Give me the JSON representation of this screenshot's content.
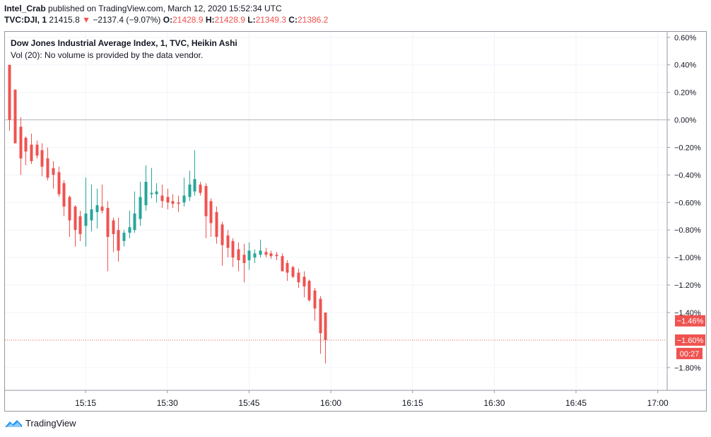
{
  "header": {
    "line1_user": "Intel_Crab",
    "line1_rest": " published on TradingView.com, March 12, 2020 15:52:34 UTC",
    "symbol": "TVC:DJI, 1",
    "price": "21415.8",
    "arrow": "▼",
    "change": "−2137.4 (−9.07%)",
    "o_label": "O:",
    "o_val": "21428.9",
    "h_label": "H:",
    "h_val": "21428.9",
    "l_label": "L:",
    "l_val": "21349.3",
    "c_label": "C:",
    "c_val": "21386.2"
  },
  "legend": {
    "title": "Dow Jones Industrial Average Index, 1, TVC, Heikin Ashi",
    "volume": "Vol (20): No volume is provided by the data vendor."
  },
  "footer": {
    "brand": "TradingView"
  },
  "colors": {
    "up": "#26a69a",
    "down": "#ef5350",
    "grid": "#f0f3fa",
    "axis": "#9598a1"
  },
  "chart_data": {
    "type": "candlestick",
    "style": "Heikin Ashi",
    "y_unit": "%",
    "ylim": [
      -1.96,
      0.64
    ],
    "y_ticks": [
      {
        "v": 0.6,
        "label": "0.60%"
      },
      {
        "v": 0.4,
        "label": "0.40%"
      },
      {
        "v": 0.2,
        "label": "0.20%"
      },
      {
        "v": 0.0,
        "label": "0.00%"
      },
      {
        "v": -0.2,
        "label": "−0.20%"
      },
      {
        "v": -0.4,
        "label": "−0.40%"
      },
      {
        "v": -0.6,
        "label": "−0.60%"
      },
      {
        "v": -0.8,
        "label": "−0.80%"
      },
      {
        "v": -1.0,
        "label": "−1.00%"
      },
      {
        "v": -1.2,
        "label": "−1.20%"
      },
      {
        "v": -1.4,
        "label": "−1.40%"
      },
      {
        "v": -1.8,
        "label": "−1.80%"
      }
    ],
    "x_ticks": [
      {
        "t": 15,
        "label": "15:15"
      },
      {
        "t": 30,
        "label": "15:30"
      },
      {
        "t": 45,
        "label": "15:45"
      },
      {
        "t": 60,
        "label": "16:00"
      },
      {
        "t": 75,
        "label": "16:15"
      },
      {
        "t": 90,
        "label": "16:30"
      },
      {
        "t": 105,
        "label": "16:45"
      },
      {
        "t": 120,
        "label": "17:00"
      }
    ],
    "x_unit": "minutes after 15:00",
    "xlim": [
      0.2,
      121.6
    ],
    "badges": [
      {
        "value": -1.46,
        "label": "−1.46%"
      },
      {
        "value": -1.6,
        "label": "−1.60%"
      }
    ],
    "countdown": "00:27",
    "current_line": -1.6,
    "candles": [
      {
        "t": 1,
        "o": 0.4,
        "c": 0.0,
        "h": 0.4,
        "l": -0.08
      },
      {
        "t": 2,
        "o": 0.22,
        "c": -0.17,
        "h": 0.22,
        "l": -0.17
      },
      {
        "t": 3,
        "o": -0.05,
        "c": -0.28,
        "h": 0.02,
        "l": -0.4
      },
      {
        "t": 4,
        "o": -0.13,
        "c": -0.23,
        "h": -0.12,
        "l": -0.33
      },
      {
        "t": 5,
        "o": -0.18,
        "c": -0.3,
        "h": -0.1,
        "l": -0.32
      },
      {
        "t": 6,
        "o": -0.18,
        "c": -0.26,
        "h": -0.15,
        "l": -0.28
      },
      {
        "t": 7,
        "o": -0.22,
        "c": -0.34,
        "h": -0.17,
        "l": -0.41
      },
      {
        "t": 8,
        "o": -0.28,
        "c": -0.42,
        "h": -0.2,
        "l": -0.44
      },
      {
        "t": 9,
        "o": -0.35,
        "c": -0.4,
        "h": -0.3,
        "l": -0.5
      },
      {
        "t": 10,
        "o": -0.38,
        "c": -0.54,
        "h": -0.34,
        "l": -0.56
      },
      {
        "t": 11,
        "o": -0.46,
        "c": -0.63,
        "h": -0.44,
        "l": -0.7
      },
      {
        "t": 12,
        "o": -0.56,
        "c": -0.73,
        "h": -0.55,
        "l": -0.85
      },
      {
        "t": 13,
        "o": -0.63,
        "c": -0.8,
        "h": -0.62,
        "l": -0.92
      },
      {
        "t": 14,
        "o": -0.7,
        "c": -0.83,
        "h": -0.66,
        "l": -0.88
      },
      {
        "t": 15,
        "o": -0.77,
        "c": -0.68,
        "h": -0.42,
        "l": -0.92
      },
      {
        "t": 16,
        "o": -0.73,
        "c": -0.65,
        "h": -0.47,
        "l": -0.81
      },
      {
        "t": 17,
        "o": -0.67,
        "c": -0.62,
        "h": -0.5,
        "l": -0.79
      },
      {
        "t": 18,
        "o": -0.63,
        "c": -0.66,
        "h": -0.47,
        "l": -0.68
      },
      {
        "t": 19,
        "o": -0.64,
        "c": -0.85,
        "h": -0.59,
        "l": -1.1
      },
      {
        "t": 20,
        "o": -0.73,
        "c": -0.83,
        "h": -0.71,
        "l": -0.96
      },
      {
        "t": 21,
        "o": -0.8,
        "c": -0.95,
        "h": -0.71,
        "l": -1.03
      },
      {
        "t": 22,
        "o": -0.88,
        "c": -0.82,
        "h": -0.8,
        "l": -0.92
      },
      {
        "t": 23,
        "o": -0.82,
        "c": -0.78,
        "h": -0.66,
        "l": -0.86
      },
      {
        "t": 24,
        "o": -0.8,
        "c": -0.68,
        "h": -0.52,
        "l": -0.82
      },
      {
        "t": 25,
        "o": -0.72,
        "c": -0.56,
        "h": -0.45,
        "l": -0.77
      },
      {
        "t": 26,
        "o": -0.62,
        "c": -0.45,
        "h": -0.33,
        "l": -0.66
      },
      {
        "t": 27,
        "o": -0.54,
        "c": -0.53,
        "h": -0.35,
        "l": -0.57
      },
      {
        "t": 28,
        "o": -0.54,
        "c": -0.52,
        "h": -0.46,
        "l": -0.6
      },
      {
        "t": 29,
        "o": -0.55,
        "c": -0.59,
        "h": -0.47,
        "l": -0.64
      },
      {
        "t": 30,
        "o": -0.56,
        "c": -0.6,
        "h": -0.5,
        "l": -0.65
      },
      {
        "t": 31,
        "o": -0.59,
        "c": -0.61,
        "h": -0.54,
        "l": -0.64
      },
      {
        "t": 32,
        "o": -0.6,
        "c": -0.61,
        "h": -0.55,
        "l": -0.67
      },
      {
        "t": 33,
        "o": -0.6,
        "c": -0.55,
        "h": -0.42,
        "l": -0.63
      },
      {
        "t": 34,
        "o": -0.56,
        "c": -0.47,
        "h": -0.37,
        "l": -0.59
      },
      {
        "t": 35,
        "o": -0.52,
        "c": -0.43,
        "h": -0.22,
        "l": -0.55
      },
      {
        "t": 36,
        "o": -0.47,
        "c": -0.53,
        "h": -0.45,
        "l": -0.55
      },
      {
        "t": 37,
        "o": -0.48,
        "c": -0.7,
        "h": -0.46,
        "l": -0.86
      },
      {
        "t": 38,
        "o": -0.59,
        "c": -0.75,
        "h": -0.57,
        "l": -0.85
      },
      {
        "t": 39,
        "o": -0.67,
        "c": -0.85,
        "h": -0.63,
        "l": -0.9
      },
      {
        "t": 40,
        "o": -0.76,
        "c": -0.91,
        "h": -0.74,
        "l": -1.06
      },
      {
        "t": 41,
        "o": -0.84,
        "c": -0.93,
        "h": -0.8,
        "l": -1.0
      },
      {
        "t": 42,
        "o": -0.88,
        "c": -1.0,
        "h": -0.86,
        "l": -1.07
      },
      {
        "t": 43,
        "o": -0.94,
        "c": -1.02,
        "h": -0.89,
        "l": -1.1
      },
      {
        "t": 44,
        "o": -0.98,
        "c": -1.04,
        "h": -0.9,
        "l": -1.18
      },
      {
        "t": 45,
        "o": -1.02,
        "c": -0.95,
        "h": -0.89,
        "l": -1.09
      },
      {
        "t": 46,
        "o": -1.0,
        "c": -0.97,
        "h": -0.94,
        "l": -1.04
      },
      {
        "t": 47,
        "o": -0.98,
        "c": -0.95,
        "h": -0.87,
        "l": -1.0
      },
      {
        "t": 48,
        "o": -0.96,
        "c": -0.98,
        "h": -0.93,
        "l": -1.0
      },
      {
        "t": 49,
        "o": -0.97,
        "c": -0.99,
        "h": -0.95,
        "l": -1.01
      },
      {
        "t": 50,
        "o": -0.98,
        "c": -0.99,
        "h": -0.96,
        "l": -1.02
      },
      {
        "t": 51,
        "o": -0.99,
        "c": -1.1,
        "h": -0.97,
        "l": -1.1
      },
      {
        "t": 52,
        "o": -1.04,
        "c": -1.11,
        "h": -1.02,
        "l": -1.17
      },
      {
        "t": 53,
        "o": -1.07,
        "c": -1.14,
        "h": -1.06,
        "l": -1.15
      },
      {
        "t": 54,
        "o": -1.11,
        "c": -1.18,
        "h": -1.08,
        "l": -1.22
      },
      {
        "t": 55,
        "o": -1.14,
        "c": -1.21,
        "h": -1.1,
        "l": -1.29
      },
      {
        "t": 56,
        "o": -1.17,
        "c": -1.31,
        "h": -1.16,
        "l": -1.32
      },
      {
        "t": 57,
        "o": -1.24,
        "c": -1.37,
        "h": -1.22,
        "l": -1.46
      },
      {
        "t": 58,
        "o": -1.3,
        "c": -1.55,
        "h": -1.28,
        "l": -1.7
      },
      {
        "t": 59,
        "o": -1.4,
        "c": -1.6,
        "h": -1.4,
        "l": -1.77
      }
    ]
  }
}
